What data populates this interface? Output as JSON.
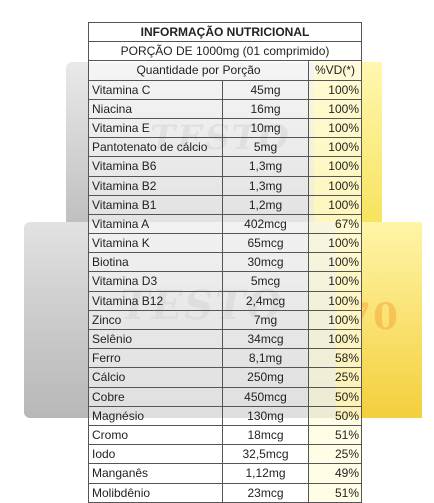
{
  "title": "INFORMAÇÃO NUTRICIONAL",
  "portion": "PORÇÃO DE 1000mg (01 comprimido)",
  "headers": {
    "quantity": "Quantidade por Porção",
    "vd": "%VD(*)"
  },
  "rows": [
    {
      "name": "Vitamina C",
      "amount": "45mg",
      "vd": "100%"
    },
    {
      "name": "Niacina",
      "amount": "16mg",
      "vd": "100%"
    },
    {
      "name": "Vitamina E",
      "amount": "10mg",
      "vd": "100%"
    },
    {
      "name": "Pantotenato de cálcio",
      "amount": "5mg",
      "vd": "100%"
    },
    {
      "name": "Vitamina B6",
      "amount": "1,3mg",
      "vd": "100%"
    },
    {
      "name": "Vitamina B2",
      "amount": "1,3mg",
      "vd": "100%"
    },
    {
      "name": "Vitamina B1",
      "amount": "1,2mg",
      "vd": "100%"
    },
    {
      "name": "Vitamina A",
      "amount": "402mcg",
      "vd": "67%"
    },
    {
      "name": "Vitamina K",
      "amount": "65mcg",
      "vd": "100%"
    },
    {
      "name": "Biotina",
      "amount": "30mcg",
      "vd": "100%"
    },
    {
      "name": "Vitamina D3",
      "amount": "5mcg",
      "vd": "100%"
    },
    {
      "name": "Vitamina B12",
      "amount": "2,4mcg",
      "vd": "100%"
    },
    {
      "name": "Zinco",
      "amount": "7mg",
      "vd": "100%"
    },
    {
      "name": "Selênio",
      "amount": "34mcg",
      "vd": "100%"
    },
    {
      "name": "Ferro",
      "amount": "8,1mg",
      "vd": "58%"
    },
    {
      "name": "Cálcio",
      "amount": "250mg",
      "vd": "25%"
    },
    {
      "name": "Cobre",
      "amount": "450mcg",
      "vd": "50%"
    },
    {
      "name": "Magnésio",
      "amount": "130mg",
      "vd": "50%"
    },
    {
      "name": "Cromo",
      "amount": "18mcg",
      "vd": "51%"
    },
    {
      "name": "Iodo",
      "amount": "32,5mcg",
      "vd": "25%"
    },
    {
      "name": "Manganês",
      "amount": "1,12mg",
      "vd": "49%"
    },
    {
      "name": "Molibdênio",
      "amount": "23mcg",
      "vd": "51%"
    }
  ]
}
